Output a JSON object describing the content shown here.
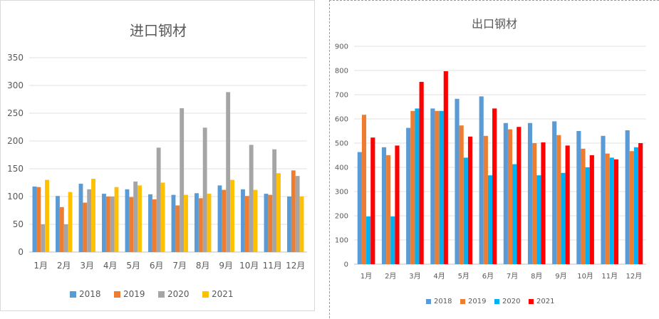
{
  "months": [
    "1月",
    "2月",
    "3月",
    "4月",
    "5月",
    "6月",
    "7月",
    "8月",
    "9月",
    "10月",
    "11月",
    "12月"
  ],
  "chart_data": [
    {
      "type": "bar",
      "title": "进口钢材",
      "categories": [
        "1月",
        "2月",
        "3月",
        "4月",
        "5月",
        "6月",
        "7月",
        "8月",
        "9月",
        "10月",
        "11月",
        "12月"
      ],
      "ylim": [
        0,
        350
      ],
      "yticks": [
        0,
        50,
        100,
        150,
        200,
        250,
        300,
        350
      ],
      "grid": true,
      "legend_position": "bottom",
      "series": [
        {
          "name": "2018",
          "color": "#5b9bd5",
          "values": [
            118,
            101,
            123,
            105,
            113,
            104,
            103,
            106,
            120,
            113,
            105,
            100
          ]
        },
        {
          "name": "2019",
          "color": "#ed7d31",
          "values": [
            117,
            81,
            89,
            100,
            99,
            95,
            84,
            97,
            112,
            101,
            103,
            147
          ]
        },
        {
          "name": "2020",
          "color": "#a5a5a5",
          "values": [
            50,
            50,
            113,
            100,
            127,
            188,
            259,
            224,
            288,
            193,
            185,
            137
          ]
        },
        {
          "name": "2021",
          "color": "#ffc000",
          "values": [
            130,
            108,
            132,
            117,
            120,
            125,
            103,
            105,
            130,
            112,
            142,
            100
          ]
        }
      ]
    },
    {
      "type": "bar",
      "title": "出口钢材",
      "categories": [
        "1月",
        "2月",
        "3月",
        "4月",
        "5月",
        "6月",
        "7月",
        "8月",
        "9月",
        "10月",
        "11月",
        "12月"
      ],
      "ylim": [
        0,
        900
      ],
      "yticks": [
        0,
        100,
        200,
        300,
        400,
        500,
        600,
        700,
        800,
        900
      ],
      "grid": true,
      "legend_position": "bottom",
      "series": [
        {
          "name": "2018",
          "color": "#5b9bd5",
          "values": [
            463,
            483,
            563,
            643,
            683,
            693,
            583,
            583,
            590,
            550,
            530,
            553
          ]
        },
        {
          "name": "2019",
          "color": "#ed7d31",
          "values": [
            617,
            450,
            633,
            633,
            573,
            530,
            557,
            500,
            533,
            477,
            457,
            467
          ]
        },
        {
          "name": "2020",
          "color": "#00b0f0",
          "values": [
            197,
            197,
            643,
            633,
            440,
            367,
            413,
            367,
            377,
            400,
            440,
            483
          ]
        },
        {
          "name": "2021",
          "color": "#ff0000",
          "values": [
            523,
            490,
            753,
            797,
            527,
            643,
            567,
            503,
            490,
            450,
            433,
            500
          ]
        }
      ]
    }
  ]
}
